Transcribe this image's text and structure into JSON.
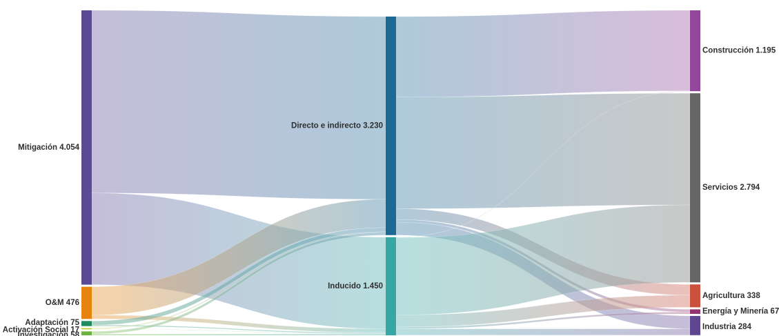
{
  "chart_data": {
    "type": "sankey",
    "nodes": [
      {
        "id": "mitigacion",
        "label": "Mitigación 4.054",
        "name": "Mitigación",
        "value": 4054,
        "color": "#5b4a94",
        "column": 0
      },
      {
        "id": "om",
        "label": "O&M 476",
        "name": "O&M",
        "value": 476,
        "color": "#e8820e",
        "column": 0
      },
      {
        "id": "adaptacion",
        "label": "Adaptación 75",
        "name": "Adaptación",
        "value": 75,
        "color": "#1f8a5e",
        "column": 0
      },
      {
        "id": "activacion",
        "label": "Activación Social 17",
        "name": "Activación Social",
        "value": 17,
        "color": "#b5c92a",
        "column": 0
      },
      {
        "id": "investigacion",
        "label": "Investigación 58",
        "name": "Investigación",
        "value": 58,
        "color": "#6db33f",
        "column": 0
      },
      {
        "id": "directo",
        "label": "Directo e indirecto 3.230",
        "name": "Directo e indirecto",
        "value": 3230,
        "color": "#1d6996",
        "column": 1
      },
      {
        "id": "inducido",
        "label": "Inducido 1.450",
        "name": "Inducido",
        "value": 1450,
        "color": "#38a6a5",
        "column": 1
      },
      {
        "id": "construccion",
        "label": "Construcción 1.195",
        "name": "Construcción",
        "value": 1195,
        "color": "#94469a",
        "column": 2
      },
      {
        "id": "servicios",
        "label": "Servicios 2.794",
        "name": "Servicios",
        "value": 2794,
        "color": "#666666",
        "column": 2
      },
      {
        "id": "agricultura",
        "label": "Agricultura 338",
        "name": "Agricultura",
        "value": 338,
        "color": "#cc503e",
        "column": 2
      },
      {
        "id": "energia",
        "label": "Energía y Minería 67",
        "name": "Energía y Minería",
        "value": 67,
        "color": "#94346e",
        "column": 2
      },
      {
        "id": "industria",
        "label": "Industria 284",
        "name": "Industria",
        "value": 284,
        "color": "#5f4690",
        "column": 2
      }
    ],
    "links": [
      {
        "source": "mitigacion",
        "target": "directo",
        "value": 2700
      },
      {
        "source": "mitigacion",
        "target": "inducido",
        "value": 1354
      },
      {
        "source": "om",
        "target": "directo",
        "value": 420
      },
      {
        "source": "om",
        "target": "inducido",
        "value": 56
      },
      {
        "source": "adaptacion",
        "target": "directo",
        "value": 60
      },
      {
        "source": "adaptacion",
        "target": "inducido",
        "value": 15
      },
      {
        "source": "activacion",
        "target": "directo",
        "value": 12
      },
      {
        "source": "activacion",
        "target": "inducido",
        "value": 5
      },
      {
        "source": "investigacion",
        "target": "directo",
        "value": 38
      },
      {
        "source": "investigacion",
        "target": "inducido",
        "value": 20
      },
      {
        "source": "directo",
        "target": "construccion",
        "value": 1190
      },
      {
        "source": "directo",
        "target": "servicios",
        "value": 1650
      },
      {
        "source": "directo",
        "target": "agricultura",
        "value": 160
      },
      {
        "source": "directo",
        "target": "energia",
        "value": 40
      },
      {
        "source": "directo",
        "target": "industria",
        "value": 190
      },
      {
        "source": "inducido",
        "target": "construccion",
        "value": 5
      },
      {
        "source": "inducido",
        "target": "servicios",
        "value": 1144
      },
      {
        "source": "inducido",
        "target": "agricultura",
        "value": 178
      },
      {
        "source": "inducido",
        "target": "energia",
        "value": 27
      },
      {
        "source": "inducido",
        "target": "industria",
        "value": 94
      }
    ]
  }
}
